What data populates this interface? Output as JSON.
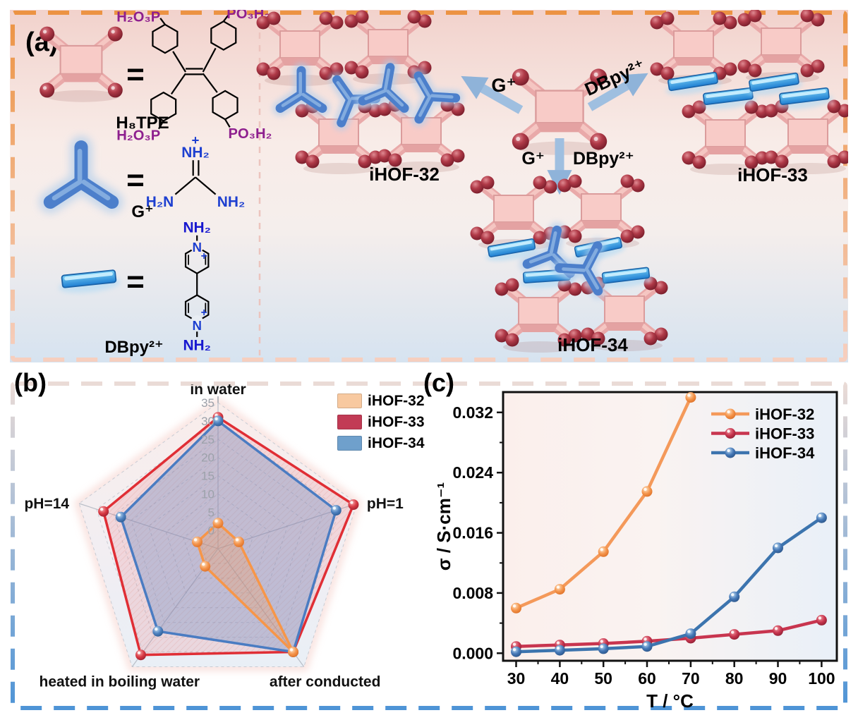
{
  "panels": {
    "a": {
      "label": "(a)"
    },
    "b": {
      "label": "(b)"
    },
    "c": {
      "label": "(c)"
    }
  },
  "panel_a": {
    "block_tpe": {
      "eq": "=",
      "name": "H₈TPE",
      "sub_top_left": "H₂O₃P",
      "sub_top_right": "PO₃H₂",
      "sub_bottom_left": "H₂O₃P",
      "sub_bottom_right": "PO₃H₂"
    },
    "block_g": {
      "eq": "=",
      "name": "G⁺",
      "charge": "+",
      "atom_top": "NH₂",
      "atom_left": "H₂N",
      "atom_right": "NH₂"
    },
    "block_dbpy": {
      "eq": "=",
      "name": "DBpy²⁺",
      "n_top": "N",
      "n_bottom": "N",
      "charge_top": "+",
      "charge_bottom": "+",
      "atom_top": "NH₂",
      "atom_bottom": "NH₂"
    },
    "arrow_g": {
      "label": "G⁺"
    },
    "arrow_dbpy": {
      "label": "DBpy²⁺"
    },
    "arrow_both": {
      "label_left": "G⁺",
      "label_right": "DBpy²⁺"
    },
    "products": {
      "p32": "iHOF-32",
      "p33": "iHOF-33",
      "p34": "iHOF-34"
    }
  },
  "colors": {
    "panel_a_border": "#EC9343",
    "panel_b_border": "#4E94D6",
    "node_pink": "#F5BFBB",
    "ball_dark_red": "#9E2132",
    "linker_blue": "#4C7FCB"
  },
  "chart_data": [
    {
      "type": "radar",
      "title": "",
      "categories": [
        "in water",
        "pH=1",
        "after conducted",
        "heated in boiling water",
        "pH=14"
      ],
      "radial_ticks": [
        0,
        5,
        10,
        15,
        20,
        25,
        30,
        35
      ],
      "rmax": 35,
      "grid": "pentagon-dashed",
      "legend_position": "top-right",
      "series": [
        {
          "name": "iHOF-32",
          "color": "#F79648",
          "fill": "rgba(247,160,90,0.30)",
          "values": [
            2,
            1,
            30,
            1,
            1
          ]
        },
        {
          "name": "iHOF-33",
          "color": "#E02E35",
          "fill": "rgba(228,95,105,0.16)",
          "values": [
            31,
            34,
            30,
            31,
            28
          ]
        },
        {
          "name": "iHOF-34",
          "color": "#4A7CC2",
          "fill": "rgba(105,140,195,0.35)",
          "values": [
            30,
            29,
            30,
            23,
            23
          ]
        }
      ],
      "legend": [
        {
          "label": "iHOF-32",
          "swatch": "#F8C9A0"
        },
        {
          "label": "iHOF-33",
          "swatch": "#C23B55"
        },
        {
          "label": "iHOF-34",
          "swatch": "#6FA0CC"
        }
      ]
    },
    {
      "type": "line",
      "title": "",
      "xlabel": "T / °C",
      "ylabel": "σ / S·cm⁻¹",
      "x": [
        30,
        40,
        50,
        60,
        70,
        80,
        90,
        100
      ],
      "xticks": [
        30,
        40,
        50,
        60,
        70,
        80,
        90,
        100
      ],
      "yticks": [
        0,
        0.008,
        0.016,
        0.024,
        0.032
      ],
      "xlim": [
        27,
        103.5
      ],
      "ylim": [
        -0.001,
        0.0347
      ],
      "grid": "off",
      "legend_position": "top-right",
      "series": [
        {
          "name": "iHOF-32",
          "color": "#F4995A",
          "values": [
            0.006,
            0.0085,
            0.0135,
            0.0215,
            0.034,
            null,
            null,
            null
          ]
        },
        {
          "name": "iHOF-33",
          "color": "#C8354F",
          "values": [
            0.0009,
            0.0011,
            0.0013,
            0.0016,
            0.002,
            0.0025,
            0.003,
            0.0044
          ]
        },
        {
          "name": "iHOF-34",
          "color": "#3C74AE",
          "values": [
            0.0002,
            0.0004,
            0.0006,
            0.0009,
            0.0026,
            0.0075,
            0.014,
            0.018
          ]
        }
      ]
    }
  ]
}
